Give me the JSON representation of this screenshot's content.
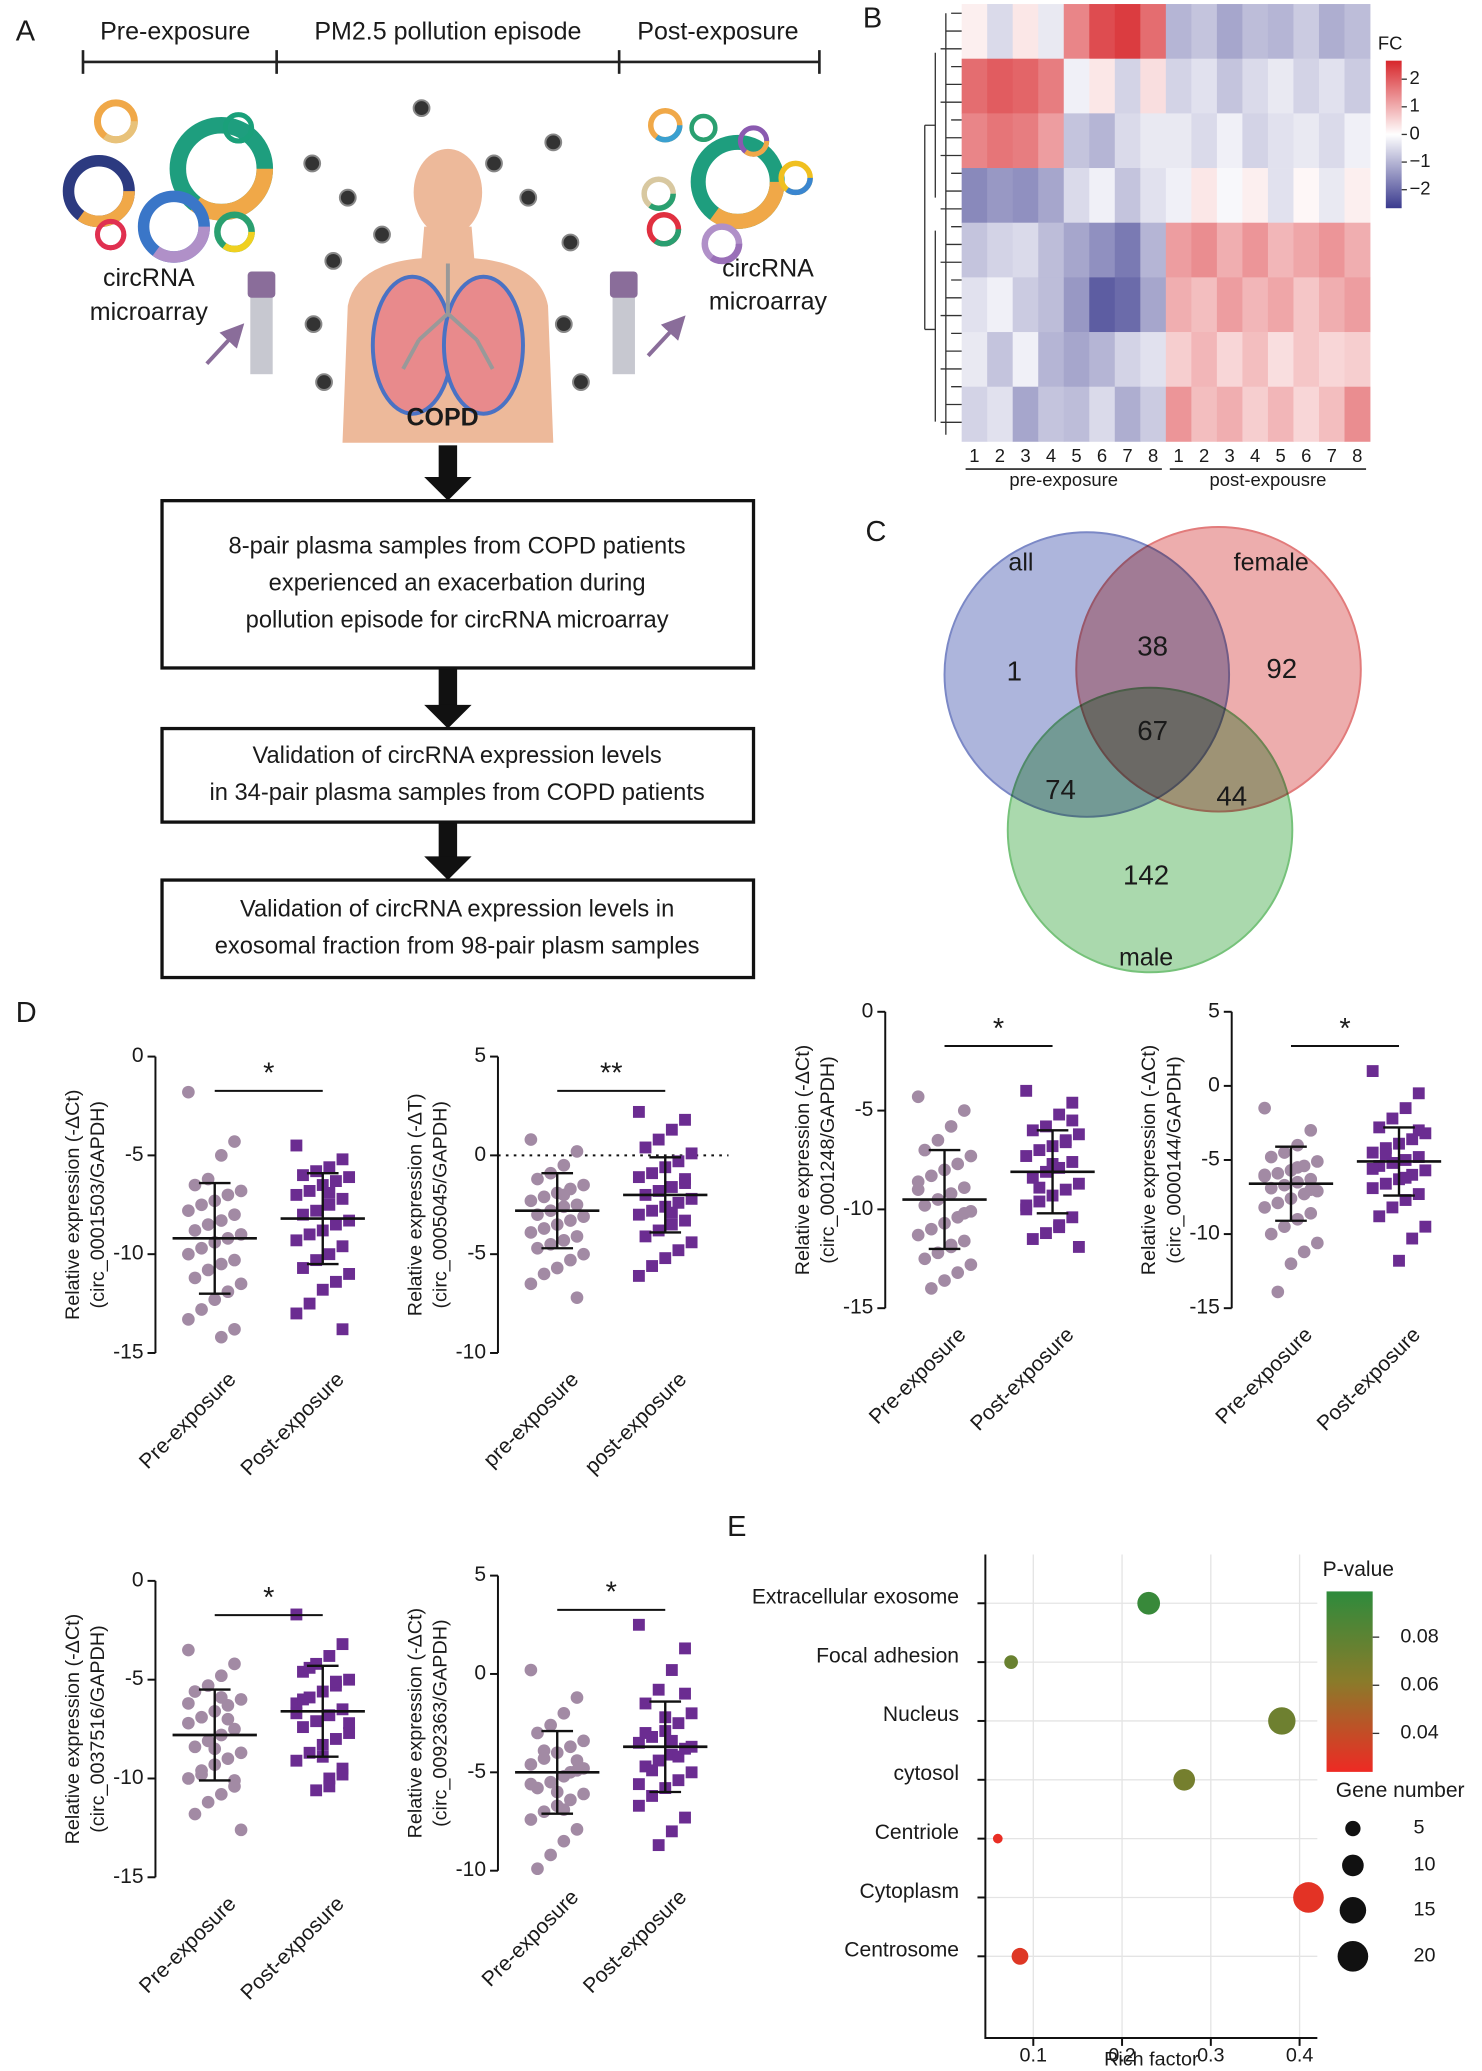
{
  "panel_labels": [
    "A",
    "B",
    "C",
    "D",
    "E"
  ],
  "diagram": {
    "phases": [
      "Pre-exposure",
      "PM2.5 pollution episode",
      "Post-exposure"
    ],
    "sample_labels": [
      [
        "circRNA",
        "microarray"
      ],
      [
        "circRNA",
        "microarray"
      ]
    ],
    "subject": "COPD",
    "steps": [
      [
        "8-pair plasma samples from COPD patients",
        "experienced an exacerbation during",
        "pollution episode for circRNA microarray"
      ],
      [
        "Validation of circRNA expression levels",
        "in 34-pair plasma samples from COPD patients"
      ],
      [
        "Validation of circRNA expression levels in",
        "exosomal fraction from 98-pair plasm samples"
      ]
    ]
  },
  "chart_data": [
    {
      "type": "heatmap",
      "columns": [
        "1",
        "2",
        "3",
        "4",
        "5",
        "6",
        "7",
        "8",
        "1",
        "2",
        "3",
        "4",
        "5",
        "6",
        "7",
        "8"
      ],
      "groups": [
        "pre-exposure",
        "post-expousre"
      ],
      "values": [
        [
          0.2,
          -0.5,
          0.3,
          -0.3,
          1.5,
          2.2,
          2.4,
          1.8,
          -1.0,
          -0.8,
          -1.2,
          -0.9,
          -1.0,
          -0.7,
          -1.1,
          -0.9
        ],
        [
          1.8,
          2.0,
          1.9,
          1.6,
          -0.2,
          0.3,
          -0.6,
          0.4,
          -0.6,
          -0.4,
          -0.8,
          -0.5,
          -0.3,
          -0.6,
          -0.4,
          -0.7
        ],
        [
          1.5,
          1.7,
          1.6,
          1.2,
          -0.8,
          -1.0,
          -0.5,
          -0.3,
          -0.3,
          -0.5,
          -0.2,
          -0.6,
          -0.4,
          -0.3,
          -0.5,
          -0.2
        ],
        [
          -1.6,
          -1.4,
          -1.5,
          -1.2,
          -0.5,
          -0.2,
          -0.8,
          -0.4,
          -0.2,
          0.3,
          -0.1,
          0.2,
          -0.4,
          0.1,
          -0.3,
          0.2
        ],
        [
          -0.8,
          -0.6,
          -0.5,
          -0.9,
          -1.2,
          -1.5,
          -1.8,
          -1.0,
          1.2,
          1.4,
          1.0,
          1.3,
          0.9,
          1.1,
          1.3,
          1.0
        ],
        [
          -0.4,
          -0.2,
          -0.7,
          -0.9,
          -1.4,
          -2.2,
          -2.0,
          -1.2,
          1.0,
          0.8,
          1.2,
          0.9,
          1.1,
          0.7,
          1.0,
          1.2
        ],
        [
          -0.3,
          -0.8,
          -0.2,
          -1.0,
          -1.2,
          -1.0,
          -0.6,
          -0.4,
          0.6,
          0.9,
          0.5,
          0.8,
          0.4,
          0.7,
          0.5,
          0.6
        ],
        [
          -0.6,
          -0.4,
          -1.2,
          -0.8,
          -0.9,
          -0.5,
          -1.1,
          -0.7,
          1.3,
          0.8,
          1.0,
          0.6,
          0.9,
          0.5,
          0.8,
          1.4
        ]
      ],
      "colorbar_title": "FC",
      "zlim": [
        -2.67,
        2.67
      ],
      "zticks": [
        2,
        1,
        0,
        {
          "value": -1,
          "label": "−1"
        },
        {
          "value": -2,
          "label": "−2"
        }
      ],
      "colors": [
        "#3a3a8e",
        "#ffffff",
        "#d7262b"
      ]
    },
    {
      "type": "venn",
      "sets": [
        "all",
        "female",
        "male"
      ],
      "colors": [
        "#7b88c6",
        "#e27b7b",
        "#76c27a"
      ],
      "regions": [
        {
          "in": [
            0
          ],
          "value": 1
        },
        {
          "in": [
            0,
            1
          ],
          "value": 38
        },
        {
          "in": [
            1
          ],
          "value": 92
        },
        {
          "in": [
            0,
            1,
            2
          ],
          "value": 67
        },
        {
          "in": [
            0,
            2
          ],
          "value": 74
        },
        {
          "in": [
            1,
            2
          ],
          "value": 44
        },
        {
          "in": [
            2
          ],
          "value": 142
        }
      ]
    },
    {
      "type": "dot",
      "categories": [
        "Pre-exposure",
        "Post-exposure"
      ],
      "ylabel": [
        "Relative expression (-ΔCt)",
        "(circ_0001503/GAPDH)"
      ],
      "ylim": [
        -15,
        0
      ],
      "yticks": [
        0,
        -5,
        -10,
        -15
      ],
      "significance": "*",
      "colors": [
        "#a28aa4",
        "#6b2c91"
      ],
      "markers": [
        "circle",
        "square"
      ],
      "values": [
        [
          -1.8,
          -4.3,
          -5.0,
          -6.2,
          -6.5,
          -6.8,
          -7.0,
          -7.3,
          -7.5,
          -7.8,
          -8.0,
          -8.3,
          -8.5,
          -8.8,
          -9.0,
          -9.2,
          -9.4,
          -9.7,
          -10.0,
          -10.3,
          -10.5,
          -10.8,
          -11.2,
          -11.5,
          -11.9,
          -12.3,
          -12.8,
          -13.3,
          -13.8,
          -14.2
        ],
        [
          -4.5,
          -5.2,
          -5.6,
          -5.8,
          -6.0,
          -6.1,
          -6.3,
          -6.5,
          -6.8,
          -7.0,
          -7.2,
          -7.5,
          -7.8,
          -8.0,
          -8.3,
          -8.5,
          -8.8,
          -9.0,
          -9.3,
          -9.6,
          -10.0,
          -10.3,
          -10.7,
          -11.0,
          -11.4,
          -11.8,
          -12.5,
          -13.0,
          -13.8,
          -6.9
        ]
      ],
      "means": [
        -9.2,
        -8.2
      ],
      "sds": [
        2.8,
        2.3
      ]
    },
    {
      "type": "dot",
      "categories": [
        "pre-exposure",
        "post-exposure"
      ],
      "ylabel": [
        "Relative expression (-ΔT)",
        "(circ_0005045/GAPDH)"
      ],
      "ylim": [
        -10,
        5
      ],
      "yticks": [
        5,
        0,
        -5,
        -10
      ],
      "reference_line": 0,
      "significance": "**",
      "colors": [
        "#a28aa4",
        "#6b2c91"
      ],
      "markers": [
        "circle",
        "square"
      ],
      "values": [
        [
          0.8,
          0.2,
          -0.5,
          -0.9,
          -1.2,
          -1.5,
          -1.7,
          -1.9,
          -2.1,
          -2.3,
          -2.5,
          -2.6,
          -2.8,
          -3.0,
          -3.1,
          -3.3,
          -3.5,
          -3.7,
          -3.9,
          -4.1,
          -4.3,
          -4.5,
          -4.7,
          -5.0,
          -5.3,
          -5.7,
          -6.0,
          -6.5,
          -7.2,
          -2.0
        ],
        [
          2.2,
          1.8,
          1.3,
          0.8,
          0.4,
          0.1,
          -0.3,
          -0.6,
          -0.9,
          -1.1,
          -1.4,
          -1.6,
          -1.8,
          -2.0,
          -2.2,
          -2.4,
          -2.6,
          -2.8,
          -3.0,
          -3.3,
          -3.5,
          -3.8,
          -4.1,
          -4.4,
          -4.8,
          -5.2,
          -5.6,
          -6.1,
          -1.2,
          -2.9
        ]
      ],
      "means": [
        -2.8,
        -2.0
      ],
      "sds": [
        1.9,
        1.9
      ]
    },
    {
      "type": "dot",
      "categories": [
        "Pre-exposure",
        "Post-exposure"
      ],
      "ylabel": [
        "Relative expression (-ΔCt)",
        "(circ_0001248/GAPDH)"
      ],
      "ylim": [
        -15,
        0
      ],
      "yticks": [
        0,
        -5,
        -10,
        -15
      ],
      "significance": "*",
      "colors": [
        "#a28aa4",
        "#6b2c91"
      ],
      "markers": [
        "circle",
        "square"
      ],
      "values": [
        [
          -4.3,
          -5.0,
          -5.8,
          -6.5,
          -7.0,
          -7.3,
          -7.7,
          -8.0,
          -8.3,
          -8.6,
          -8.9,
          -9.2,
          -9.5,
          -9.8,
          -10.1,
          -10.4,
          -10.7,
          -11.0,
          -11.3,
          -11.6,
          -11.9,
          -12.2,
          -12.5,
          -12.8,
          -13.2,
          -13.6,
          -14.0,
          -9.0,
          -10.2,
          -11.8
        ],
        [
          -4.0,
          -4.6,
          -5.2,
          -5.8,
          -6.0,
          -6.2,
          -6.5,
          -6.8,
          -7.0,
          -7.3,
          -7.6,
          -7.9,
          -8.1,
          -8.4,
          -8.7,
          -9.0,
          -9.3,
          -9.6,
          -10.0,
          -10.4,
          -10.8,
          -11.2,
          -11.5,
          -11.9,
          -6.6,
          -7.7,
          -8.9,
          -9.8,
          -5.5,
          -10.9
        ]
      ],
      "means": [
        -9.5,
        -8.1
      ],
      "sds": [
        2.5,
        2.1
      ]
    },
    {
      "type": "dot",
      "categories": [
        "Pre-exposure",
        "Post-exposure"
      ],
      "ylabel": [
        "Relative expression (-ΔCt)",
        "(circ_0000144/GAPDH)"
      ],
      "ylim": [
        -15,
        5
      ],
      "yticks": [
        5,
        0,
        -5,
        -10,
        -15
      ],
      "significance": "*",
      "colors": [
        "#a28aa4",
        "#6b2c91"
      ],
      "markers": [
        "circle",
        "square"
      ],
      "values": [
        [
          -1.5,
          -3.0,
          -4.0,
          -4.5,
          -4.8,
          -5.1,
          -5.4,
          -5.7,
          -5.9,
          -6.1,
          -6.3,
          -6.5,
          -6.7,
          -6.9,
          -7.1,
          -7.3,
          -7.6,
          -7.9,
          -8.2,
          -8.6,
          -9.0,
          -9.5,
          -10.0,
          -10.6,
          -11.2,
          -12.0,
          -13.9,
          -6.0,
          -7.0,
          -5.5
        ],
        [
          1.0,
          -0.5,
          -1.5,
          -2.2,
          -2.8,
          -3.2,
          -3.6,
          -3.9,
          -4.2,
          -4.5,
          -4.8,
          -5.0,
          -5.2,
          -5.4,
          -5.7,
          -6.0,
          -6.3,
          -6.6,
          -6.9,
          -7.3,
          -7.7,
          -8.2,
          -8.8,
          -9.5,
          -10.3,
          -11.8,
          -4.6,
          -5.6,
          -3.0,
          -6.2
        ]
      ],
      "means": [
        -6.6,
        -5.1
      ],
      "sds": [
        2.5,
        2.3
      ]
    },
    {
      "type": "dot",
      "categories": [
        "Pre-exposure",
        "Post-exposure"
      ],
      "ylabel": [
        "Relative expression (-ΔCt)",
        "(circ_0037516/GAPDH)"
      ],
      "ylim": [
        -15,
        0
      ],
      "yticks": [
        0,
        -5,
        -10,
        -15
      ],
      "significance": "*",
      "colors": [
        "#a28aa4",
        "#6b2c91"
      ],
      "markers": [
        "circle",
        "square"
      ],
      "values": [
        [
          -3.5,
          -4.2,
          -4.8,
          -5.3,
          -5.6,
          -6.0,
          -6.3,
          -6.6,
          -6.9,
          -7.2,
          -7.5,
          -7.8,
          -8.1,
          -8.4,
          -8.7,
          -9.0,
          -9.3,
          -9.6,
          -10.0,
          -10.4,
          -10.8,
          -11.2,
          -11.8,
          -12.6,
          -7.0,
          -8.5,
          -9.8,
          -6.2,
          -10.1,
          -5.9
        ],
        [
          -1.7,
          -3.2,
          -3.8,
          -4.2,
          -4.6,
          -5.0,
          -5.3,
          -5.6,
          -5.9,
          -6.2,
          -6.5,
          -6.8,
          -7.1,
          -7.4,
          -7.7,
          -8.0,
          -8.3,
          -8.7,
          -9.1,
          -9.5,
          -10.0,
          -10.6,
          -6.0,
          -7.2,
          -5.1,
          -8.9,
          -4.4,
          -6.7,
          -9.8,
          -10.4
        ]
      ],
      "means": [
        -7.8,
        -6.6
      ],
      "sds": [
        2.3,
        2.3
      ]
    },
    {
      "type": "dot",
      "categories": [
        "Pre-exposure",
        "Post-exposure"
      ],
      "ylabel": [
        "Relative expression (-ΔCt)",
        "(circ_0092363/GAPDH)"
      ],
      "ylim": [
        -10,
        5
      ],
      "yticks": [
        5,
        0,
        -5,
        -10
      ],
      "significance": "*",
      "colors": [
        "#a28aa4",
        "#6b2c91"
      ],
      "markers": [
        "circle",
        "square"
      ],
      "values": [
        [
          0.2,
          -1.2,
          -2.0,
          -2.6,
          -3.0,
          -3.4,
          -3.7,
          -4.0,
          -4.3,
          -4.6,
          -4.9,
          -5.2,
          -5.5,
          -5.8,
          -6.1,
          -6.4,
          -6.7,
          -7.0,
          -7.4,
          -7.9,
          -8.5,
          -9.2,
          -9.9,
          -4.8,
          -5.0,
          -6.0,
          -3.9,
          -5.6,
          -4.4,
          -6.9
        ],
        [
          2.5,
          1.3,
          0.2,
          -0.8,
          -1.5,
          -2.0,
          -2.5,
          -2.9,
          -3.2,
          -3.5,
          -3.8,
          -4.1,
          -4.4,
          -4.7,
          -5.0,
          -5.4,
          -5.8,
          -6.2,
          -6.7,
          -7.3,
          -8.0,
          -8.7,
          -3.0,
          -3.7,
          -4.2,
          -2.2,
          -4.9,
          -5.6,
          -1.0,
          -3.4
        ]
      ],
      "means": [
        -5.0,
        -3.7
      ],
      "sds": [
        2.1,
        2.3
      ]
    },
    {
      "type": "bubble",
      "categories": [
        "Extracellular exosome",
        "Focal adhesion",
        "Nucleus",
        "cytosol",
        "Centriole",
        "Cytoplasm",
        "Centrosome"
      ],
      "label_colors": [
        "#c00000",
        "#1a1a1a",
        "#1a1a1a",
        "#1a1a1a",
        "#1a1a1a",
        "#1a1a1a",
        "#1a1a1a"
      ],
      "x": [
        0.23,
        0.075,
        0.38,
        0.27,
        0.06,
        0.41,
        0.085
      ],
      "sizes": [
        11,
        4,
        16,
        10,
        2,
        20,
        6
      ],
      "pvalues": [
        0.095,
        0.075,
        0.073,
        0.07,
        0.026,
        0.028,
        0.03
      ],
      "xlabel": "Rich factor",
      "xlim": [
        0.046,
        0.42
      ],
      "xticks": [
        0.1,
        0.2,
        0.3,
        0.4
      ],
      "color_title": "P-value",
      "clim": [
        0.024,
        0.099
      ],
      "cticks": [
        0.08,
        0.06,
        0.04
      ],
      "colors": [
        "#ee2a24",
        "#8a7b2a",
        "#2e8b3c"
      ],
      "size_title": "Gene number",
      "size_ticks": [
        5,
        10,
        15,
        20
      ]
    }
  ]
}
